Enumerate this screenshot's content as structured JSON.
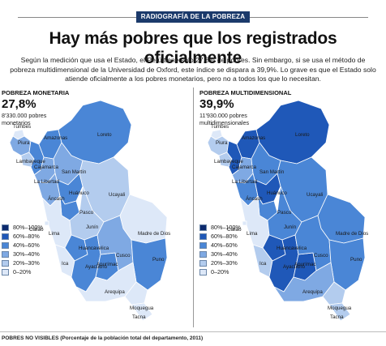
{
  "header": {
    "kicker": "RADIOGRAFÍA DE LA POBREZA",
    "headline": "Hay más pobres que los registrados oficialmente",
    "lede": "Según la medición que usa el Estado, el Perú tiene solo 27,8% de pobres. Sin embargo, si se usa el método de pobreza multidimensional de la Universidad de Oxford, este índice se dispara a 39,9%. Lo grave es que el Estado solo atiende oficialmente a los pobres monetarios, pero no a todos los que lo necesitan."
  },
  "legend": [
    {
      "label": "80%–100%",
      "color": "#0c2a6e"
    },
    {
      "label": "60%–80%",
      "color": "#1f58b8"
    },
    {
      "label": "40%–60%",
      "color": "#4a86d6"
    },
    {
      "label": "30%–40%",
      "color": "#7fa9e3"
    },
    {
      "label": "20%–30%",
      "color": "#b3ccee"
    },
    {
      "label": "0–20%",
      "color": "#dde8f8"
    }
  ],
  "panels": [
    {
      "title": "POBREZA MONETARIA",
      "pct": "27,8%",
      "subtitle": "8'330.000 pobres monetarios",
      "colors": {
        "tumbes": "#dde8f8",
        "piura": "#7fa9e3",
        "lambayeque": "#b3ccee",
        "cajamarca": "#4a86d6",
        "amazonas": "#4a86d6",
        "loreto": "#4a86d6",
        "lalibertad": "#7fa9e3",
        "sanmartin": "#7fa9e3",
        "ancash": "#7fa9e3",
        "huanuco": "#4a86d6",
        "ucayali": "#b3ccee",
        "pasco": "#4a86d6",
        "lima": "#dde8f8",
        "callao": "#dde8f8",
        "junin": "#b3ccee",
        "huancavelica": "#4a86d6",
        "ica": "#dde8f8",
        "ayacucho": "#4a86d6",
        "apurimac": "#4a86d6",
        "cusco": "#7fa9e3",
        "maddedios": "#dde8f8",
        "puno": "#4a86d6",
        "arequipa": "#dde8f8",
        "moquegua": "#dde8f8",
        "tacna": "#dde8f8"
      },
      "labels": {
        "tumbes": "Tumbes",
        "piura": "Piura",
        "lambayeque": "Lambayeque",
        "cajamarca": "Cajamarca",
        "amazonas": "Amazonas",
        "loreto": "Loreto",
        "lalibertad": "La Libertad",
        "sanmartin": "San Martín",
        "ancash": "Áncash",
        "huanuco": "Huánuco",
        "ucayali": "Ucayali",
        "pasco": "Pasco",
        "callao": "Callao",
        "lima": "Lima",
        "junin": "Junín",
        "huancavelica": "Huancavelica",
        "ica": "Ica",
        "ayacucho": "Ayacucho",
        "apurimac": "Apurímac",
        "cusco": "Cusco",
        "maddedios": "Madre de Dios",
        "puno": "Puno",
        "arequipa": "Arequipa",
        "moquegua": "Moquegua",
        "tacna": "Tacna"
      }
    },
    {
      "title": "POBREZA MULTIDIMENSIONAL",
      "pct": "39,9%",
      "subtitle": "11'930.000 pobres multidimensionales",
      "colors": {
        "tumbes": "#dde8f8",
        "piura": "#b3ccee",
        "lambayeque": "#b3ccee",
        "cajamarca": "#1f58b8",
        "amazonas": "#1f58b8",
        "loreto": "#1f58b8",
        "lalibertad": "#7fa9e3",
        "sanmartin": "#4a86d6",
        "ancash": "#4a86d6",
        "huanuco": "#1f58b8",
        "ucayali": "#4a86d6",
        "pasco": "#4a86d6",
        "lima": "#dde8f8",
        "callao": "#dde8f8",
        "junin": "#4a86d6",
        "huancavelica": "#1f58b8",
        "ica": "#b3ccee",
        "ayacucho": "#1f58b8",
        "apurimac": "#1f58b8",
        "cusco": "#4a86d6",
        "maddedios": "#4a86d6",
        "puno": "#4a86d6",
        "arequipa": "#7fa9e3",
        "moquegua": "#b3ccee",
        "tacna": "#b3ccee"
      },
      "labels": {
        "tumbes": "Tumbes",
        "piura": "Piura",
        "lambayeque": "Lambayeque",
        "cajamarca": "Cajamarca",
        "amazonas": "Amazonas",
        "loreto": "Loreto",
        "lalibertad": "La Libertad",
        "sanmartin": "San Martín",
        "ancash": "Áncash",
        "huanuco": "Huánuco",
        "ucayali": "Ucayali",
        "pasco": "Pasco",
        "callao": "Callao",
        "lima": "Lima",
        "junin": "Junín",
        "huancavelica": "Huancavelica",
        "ica": "Ica",
        "ayacucho": "Ayacucho",
        "apurimac": "Apurímac",
        "cusco": "Cusco",
        "maddedios": "Madre de Dios",
        "puno": "Puno",
        "arequipa": "Arequipa",
        "moquegua": "Moquegua",
        "tacna": "Tacna"
      }
    }
  ],
  "footer": {
    "text": "POBRES NO VISIBLES (Porcentaje de la población total del departamento, 2011)"
  }
}
